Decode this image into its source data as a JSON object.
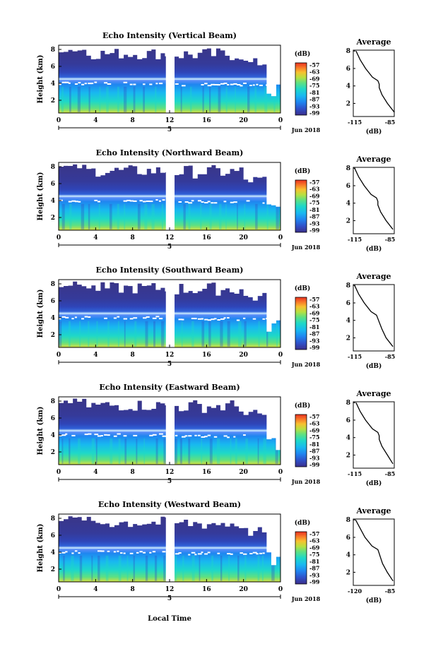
{
  "colors": {
    "background": "#ffffff",
    "axis": "#000000",
    "colormap": [
      "#3b2e8a",
      "#2f50c8",
      "#1f86f0",
      "#18b8f0",
      "#1ed8c8",
      "#60e080",
      "#b8e040",
      "#f8c030",
      "#f87828",
      "#e83020"
    ],
    "no_data": "#ffffff"
  },
  "panels": [
    {
      "title": "Echo Intensity (Vertical Beam)",
      "avg_xticks": [
        "-115",
        "-85"
      ],
      "xlim": [
        -115,
        -85
      ]
    },
    {
      "title": "Echo Intensity (Northward Beam)",
      "avg_xticks": [
        "-115",
        "-85"
      ],
      "xlim": [
        -115,
        -85
      ]
    },
    {
      "title": "Echo Intensity (Southward Beam)",
      "avg_xticks": [
        "-115",
        "-85"
      ],
      "xlim": [
        -115,
        -85
      ]
    },
    {
      "title": "Echo Intensity (Eastward Beam)",
      "avg_xticks": [
        "-115",
        "-85"
      ],
      "xlim": [
        -115,
        -85
      ]
    },
    {
      "title": "Echo Intensity (Westward Beam)",
      "avg_xticks": [
        "-120",
        "-85"
      ],
      "xlim": [
        -120,
        -85
      ]
    }
  ],
  "common": {
    "ylabel": "Height (km)",
    "y_ticks": [
      "2",
      "4",
      "6",
      "8"
    ],
    "time_ticks": [
      "0",
      "4",
      "8",
      "12",
      "16",
      "20",
      "0"
    ],
    "day_label": "5",
    "date_label": "Jun 2018",
    "xlabel": "Local Time",
    "colorbar_unit": "(dB)",
    "colorbar_ticks": [
      "-57",
      "-63",
      "-69",
      "-75",
      "-81",
      "-87",
      "-93",
      "-99"
    ],
    "avg_title": "Average",
    "avg_xlabel": "(dB)"
  },
  "chart_data": [
    {
      "type": "heatmap",
      "title": "Echo Intensity (Vertical Beam)",
      "xlabel": "",
      "ylabel": "Height (km)",
      "x_range_hours": [
        0,
        24
      ],
      "ylim": [
        0.5,
        8.5
      ],
      "colorbar": {
        "unit": "(dB)",
        "range": [
          -99,
          -57
        ]
      },
      "bright_band_height_km": 4.0,
      "data_gap_hours": [
        11.6,
        12.1
      ],
      "average_profile": {
        "xlim": [
          -115,
          -85
        ],
        "height_km": [
          8,
          7,
          6,
          5,
          4.6,
          4.2,
          3.8,
          3,
          2,
          1
        ],
        "db": [
          -113,
          -110,
          -106,
          -101,
          -97,
          -96,
          -96,
          -94,
          -90,
          -85
        ]
      }
    },
    {
      "type": "heatmap",
      "title": "Echo Intensity (Northward Beam)",
      "xlabel": "",
      "ylabel": "Height (km)",
      "x_range_hours": [
        0,
        24
      ],
      "ylim": [
        0.5,
        8.5
      ],
      "colorbar": {
        "unit": "(dB)",
        "range": [
          -99,
          -57
        ]
      },
      "bright_band_height_km": 4.0,
      "data_gap_hours": [
        11.6,
        12.1
      ],
      "average_profile": {
        "xlim": [
          -115,
          -85
        ],
        "height_km": [
          8,
          7,
          6,
          5,
          4.6,
          4.2,
          3.8,
          3,
          2,
          1
        ],
        "db": [
          -114,
          -111,
          -107,
          -102,
          -98,
          -97,
          -97,
          -95,
          -91,
          -86
        ]
      }
    },
    {
      "type": "heatmap",
      "title": "Echo Intensity (Southward Beam)",
      "xlabel": "",
      "ylabel": "Height (km)",
      "x_range_hours": [
        0,
        24
      ],
      "ylim": [
        0.5,
        8.5
      ],
      "colorbar": {
        "unit": "(dB)",
        "range": [
          -99,
          -57
        ]
      },
      "bright_band_height_km": 4.0,
      "data_gap_hours": [
        11.6,
        12.1
      ],
      "average_profile": {
        "xlim": [
          -115,
          -85
        ],
        "height_km": [
          8,
          7,
          6,
          5,
          4.6,
          4.2,
          3.8,
          3,
          2,
          1
        ],
        "db": [
          -114,
          -111,
          -107,
          -102,
          -98,
          -97,
          -96,
          -94,
          -91,
          -86
        ]
      }
    },
    {
      "type": "heatmap",
      "title": "Echo Intensity (Eastward Beam)",
      "xlabel": "",
      "ylabel": "Height (km)",
      "x_range_hours": [
        0,
        24
      ],
      "ylim": [
        0.5,
        8.5
      ],
      "colorbar": {
        "unit": "(dB)",
        "range": [
          -99,
          -57
        ]
      },
      "bright_band_height_km": 4.0,
      "data_gap_hours": [
        11.6,
        12.1
      ],
      "average_profile": {
        "xlim": [
          -115,
          -85
        ],
        "height_km": [
          8,
          7,
          6,
          5,
          4.6,
          4.2,
          3.8,
          3,
          2,
          1
        ],
        "db": [
          -113,
          -110,
          -106,
          -101,
          -97,
          -96,
          -96,
          -94,
          -90,
          -86
        ]
      }
    },
    {
      "type": "heatmap",
      "title": "Echo Intensity (Westward Beam)",
      "xlabel": "Local Time",
      "ylabel": "Height (km)",
      "x_range_hours": [
        0,
        24
      ],
      "ylim": [
        0.5,
        8.5
      ],
      "colorbar": {
        "unit": "(dB)",
        "range": [
          -99,
          -57
        ]
      },
      "bright_band_height_km": 4.0,
      "data_gap_hours": [
        11.6,
        12.1
      ],
      "average_profile": {
        "xlim": [
          -120,
          -85
        ],
        "height_km": [
          8,
          7,
          6,
          5,
          4.6,
          4.2,
          3.8,
          3,
          2,
          1
        ],
        "db": [
          -118,
          -114,
          -110,
          -104,
          -99,
          -98,
          -97,
          -95,
          -91,
          -86
        ]
      }
    }
  ]
}
